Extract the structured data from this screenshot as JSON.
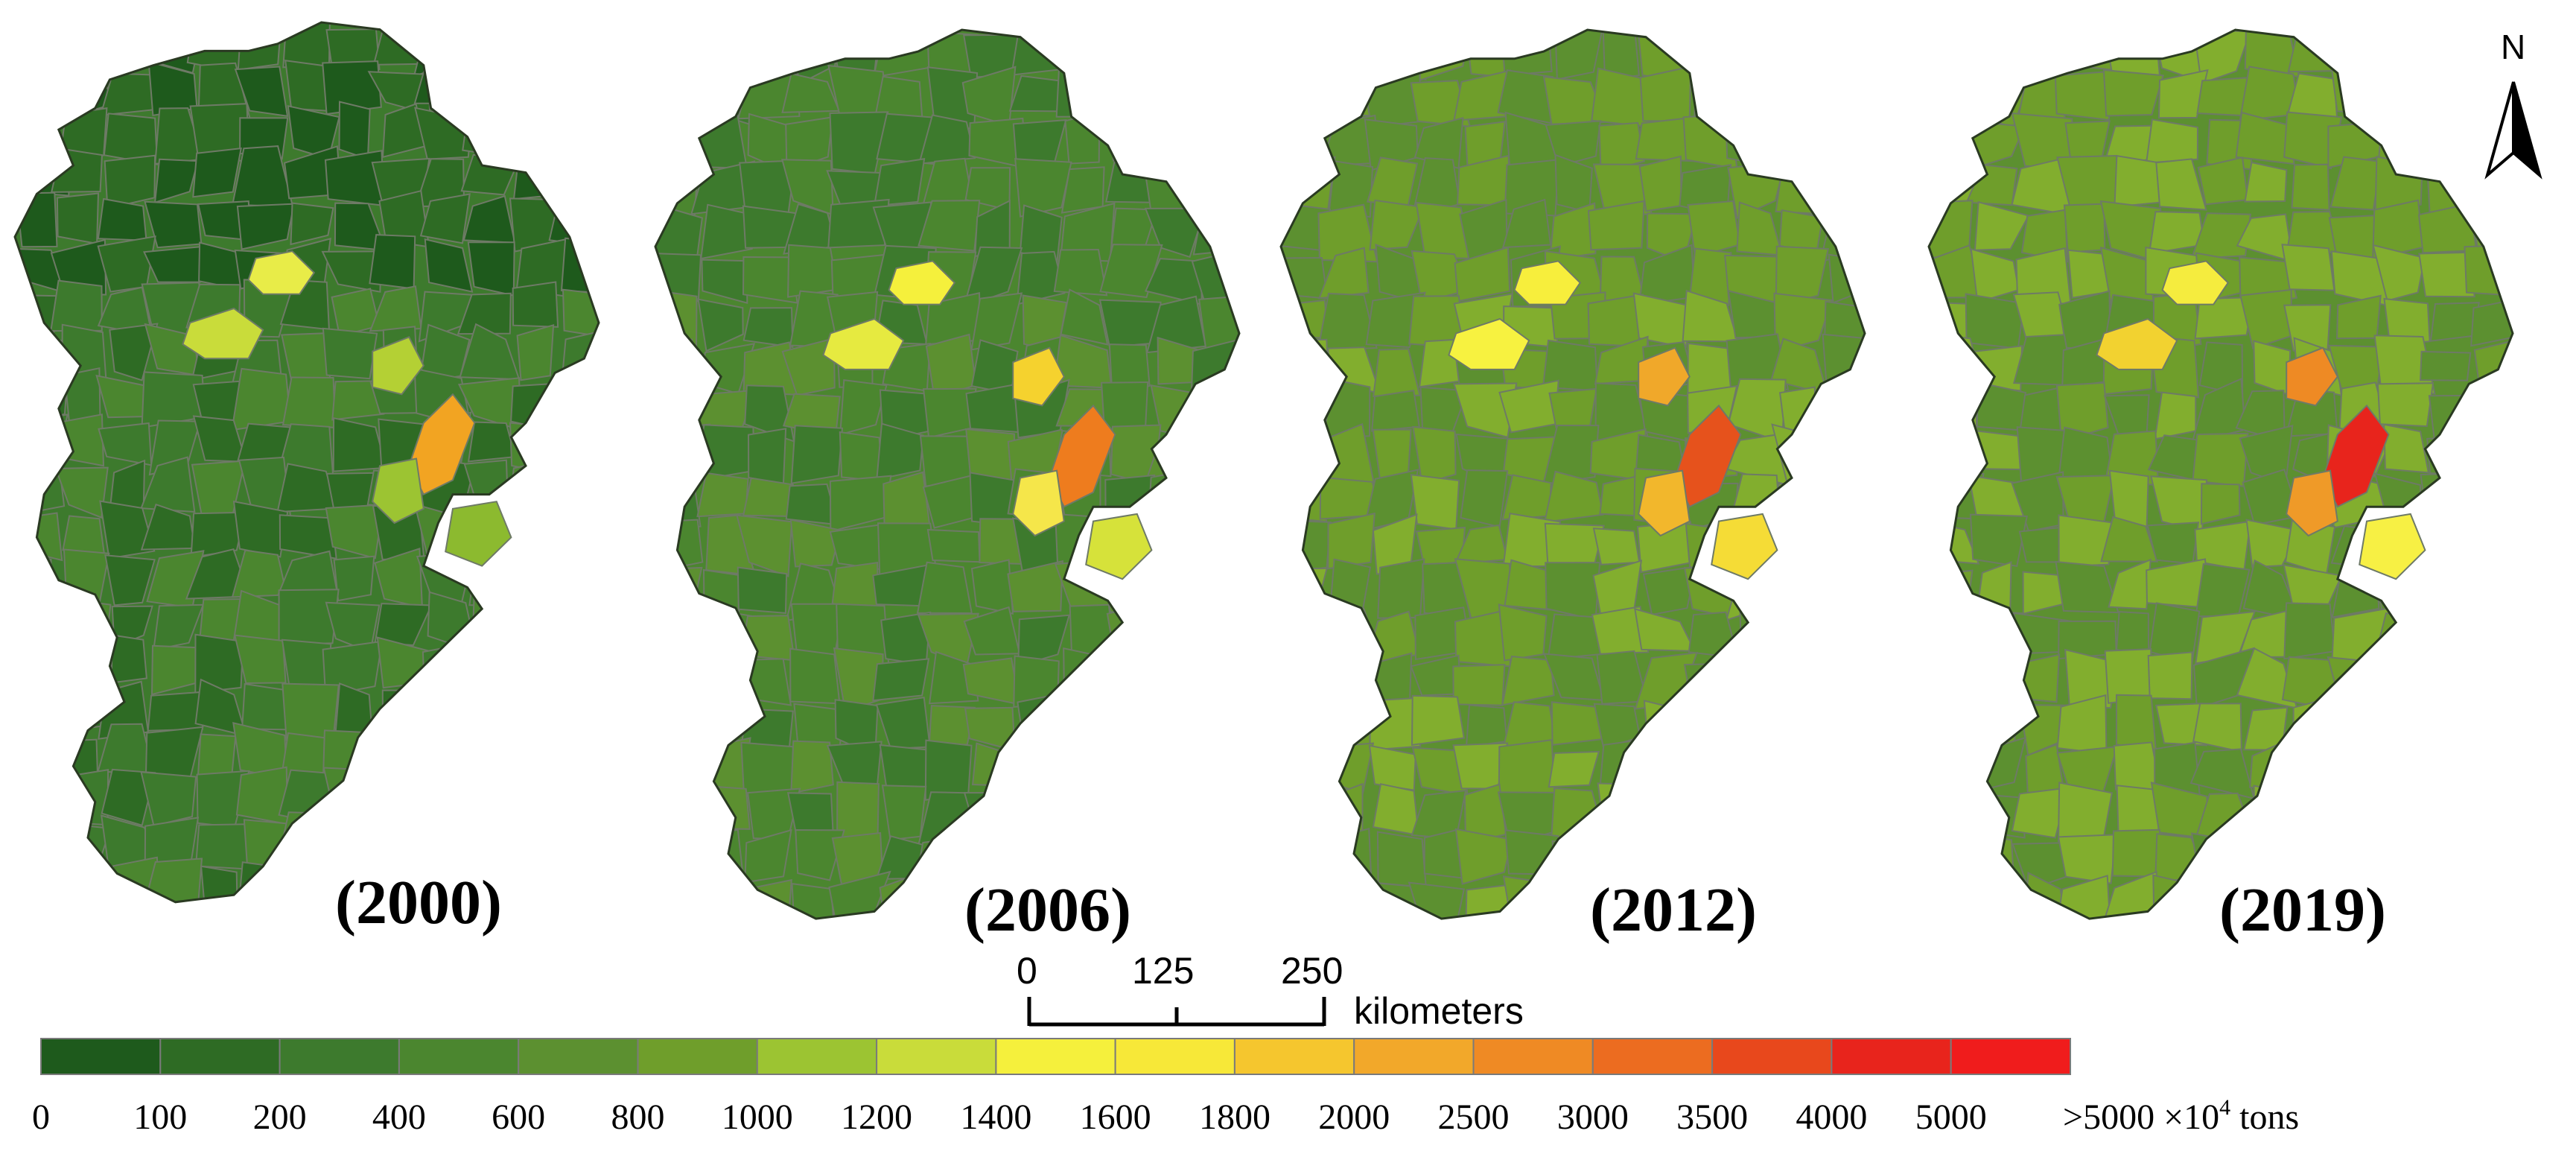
{
  "panels": [
    {
      "year": "(2000)",
      "fills": [
        "#1e5a1c",
        "#2e6b24",
        "#3d7a2d",
        "#4b862f",
        "#5c9030",
        "#6f9e2b"
      ],
      "hotspots": [
        {
          "color": "#e8ec48"
        },
        {
          "color": "#c9dc3a"
        },
        {
          "color": "#b4d034"
        },
        {
          "color": "#f2a422"
        },
        {
          "color": "#9cc432"
        },
        {
          "color": "#8cba2f"
        }
      ]
    },
    {
      "year": "(2006)",
      "fills": [
        "#2e6b24",
        "#3d7a2d",
        "#4b862f",
        "#5c9030",
        "#6f9e2b",
        "#82ae2e"
      ],
      "hotspots": [
        {
          "color": "#f5f03c"
        },
        {
          "color": "#e6ea40"
        },
        {
          "color": "#f5d22e"
        },
        {
          "color": "#ee7c1e"
        },
        {
          "color": "#f5e64a"
        },
        {
          "color": "#d6e23a"
        }
      ]
    },
    {
      "year": "(2012)",
      "fills": [
        "#3d7a2d",
        "#4b862f",
        "#5c9030",
        "#6f9e2b",
        "#82ae2e",
        "#94bc30"
      ],
      "hotspots": [
        {
          "color": "#f7ee3c"
        },
        {
          "color": "#f7f240"
        },
        {
          "color": "#f0a82a"
        },
        {
          "color": "#e6521c"
        },
        {
          "color": "#f2b72c"
        },
        {
          "color": "#f5dc36"
        }
      ]
    },
    {
      "year": "(2019)",
      "fills": [
        "#3d7a2d",
        "#4b862f",
        "#5c9030",
        "#6f9e2b",
        "#82ae2e",
        "#a2c636"
      ],
      "hotspots": [
        {
          "color": "#f5ec3e"
        },
        {
          "color": "#f2d230"
        },
        {
          "color": "#ee8a24"
        },
        {
          "color": "#e8241c"
        },
        {
          "color": "#ef9a28"
        },
        {
          "color": "#f7f044"
        }
      ]
    }
  ],
  "scale_bar": {
    "ticks": [
      "0",
      "125",
      "250"
    ],
    "unit": "kilometers"
  },
  "north_arrow": {
    "label": "N"
  },
  "legend": {
    "colors": [
      "#1e5a1c",
      "#2e6b24",
      "#3d7a2d",
      "#4b862f",
      "#5c9030",
      "#6f9e2b",
      "#9cc432",
      "#c9dc3a",
      "#f5f03c",
      "#f7e838",
      "#f5c62e",
      "#f2a82a",
      "#ef8a24",
      "#ec6c20",
      "#e8481c",
      "#e8241c",
      "#f01c1c"
    ],
    "ticks": [
      "0",
      "100",
      "200",
      "400",
      "600",
      "800",
      "1000",
      "1200",
      "1400",
      "1600",
      "1800",
      "2000",
      "2500",
      "3000",
      "3500",
      "4000",
      "5000"
    ],
    "last_label": ">5000 ×10",
    "exponent": "4",
    "unit": "tons"
  }
}
